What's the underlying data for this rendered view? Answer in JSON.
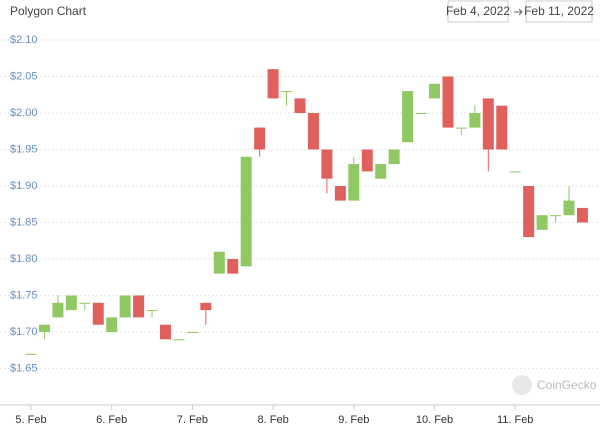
{
  "chart_data": {
    "type": "candlestick",
    "title": "Polygon Chart",
    "date_from": "Feb 4, 2022",
    "date_to": "Feb 11, 2022",
    "watermark": "CoinGecko",
    "categories": [
      "5. Feb",
      null,
      null,
      null,
      null,
      null,
      "6. Feb",
      null,
      null,
      null,
      null,
      null,
      "7. Feb",
      null,
      null,
      null,
      null,
      null,
      "8. Feb",
      null,
      null,
      null,
      null,
      null,
      "9. Feb",
      null,
      null,
      null,
      null,
      null,
      "10. Feb",
      null,
      null,
      null,
      null,
      null,
      "11. Feb",
      null,
      null,
      null,
      null,
      null
    ],
    "open": [
      1.67,
      1.7,
      1.72,
      1.73,
      1.74,
      1.74,
      1.7,
      1.72,
      1.75,
      1.73,
      1.71,
      1.69,
      1.7,
      1.74,
      1.78,
      1.8,
      1.79,
      1.98,
      2.06,
      2.03,
      2.02,
      2.0,
      1.95,
      1.9,
      1.88,
      1.95,
      1.91,
      1.93,
      1.96,
      2.0,
      2.02,
      2.05,
      1.98,
      1.98,
      2.02,
      2.01,
      1.92,
      1.9,
      1.84,
      1.86,
      1.86,
      1.87
    ],
    "high": [
      1.67,
      1.71,
      1.75,
      1.75,
      1.74,
      1.74,
      1.72,
      1.75,
      1.75,
      1.73,
      1.71,
      1.69,
      1.7,
      1.74,
      1.81,
      1.8,
      1.94,
      1.98,
      2.06,
      2.03,
      2.02,
      2.0,
      1.95,
      1.9,
      1.94,
      1.95,
      1.93,
      1.95,
      2.03,
      2.0,
      2.04,
      2.05,
      1.98,
      2.01,
      2.02,
      2.01,
      1.92,
      1.9,
      1.86,
      1.86,
      1.9,
      1.87
    ],
    "low": [
      1.67,
      1.69,
      1.72,
      1.73,
      1.73,
      1.71,
      1.7,
      1.72,
      1.72,
      1.72,
      1.69,
      1.69,
      1.7,
      1.71,
      1.78,
      1.78,
      1.79,
      1.94,
      2.02,
      2.01,
      2.0,
      1.95,
      1.89,
      1.88,
      1.88,
      1.92,
      1.91,
      1.93,
      1.96,
      2.0,
      2.02,
      1.98,
      1.97,
      1.98,
      1.92,
      1.95,
      1.92,
      1.83,
      1.84,
      1.85,
      1.86,
      1.85
    ],
    "close": [
      1.67,
      1.71,
      1.74,
      1.75,
      1.74,
      1.71,
      1.72,
      1.75,
      1.72,
      1.73,
      1.69,
      1.69,
      1.7,
      1.73,
      1.81,
      1.78,
      1.94,
      1.95,
      2.02,
      2.03,
      2.0,
      1.95,
      1.91,
      1.88,
      1.93,
      1.92,
      1.93,
      1.95,
      2.03,
      2.0,
      2.04,
      1.98,
      1.98,
      2.0,
      1.95,
      1.95,
      1.92,
      1.83,
      1.86,
      1.86,
      1.88,
      1.85
    ],
    "up_color": "#90c863",
    "down_color": "#e0615b",
    "ylim": [
      1.6,
      2.1
    ],
    "yticks": [
      {
        "value": 1.65,
        "label": "$1.65"
      },
      {
        "value": 1.7,
        "label": "$1.70"
      },
      {
        "value": 1.75,
        "label": "$1.75"
      },
      {
        "value": 1.8,
        "label": "$1.80"
      },
      {
        "value": 1.85,
        "label": "$1.85"
      },
      {
        "value": 1.9,
        "label": "$1.90"
      },
      {
        "value": 1.95,
        "label": "$1.95"
      },
      {
        "value": 2.0,
        "label": "$2.00"
      },
      {
        "value": 2.05,
        "label": "$2.05"
      },
      {
        "value": 2.1,
        "label": "$2.10"
      }
    ],
    "grid": true
  }
}
